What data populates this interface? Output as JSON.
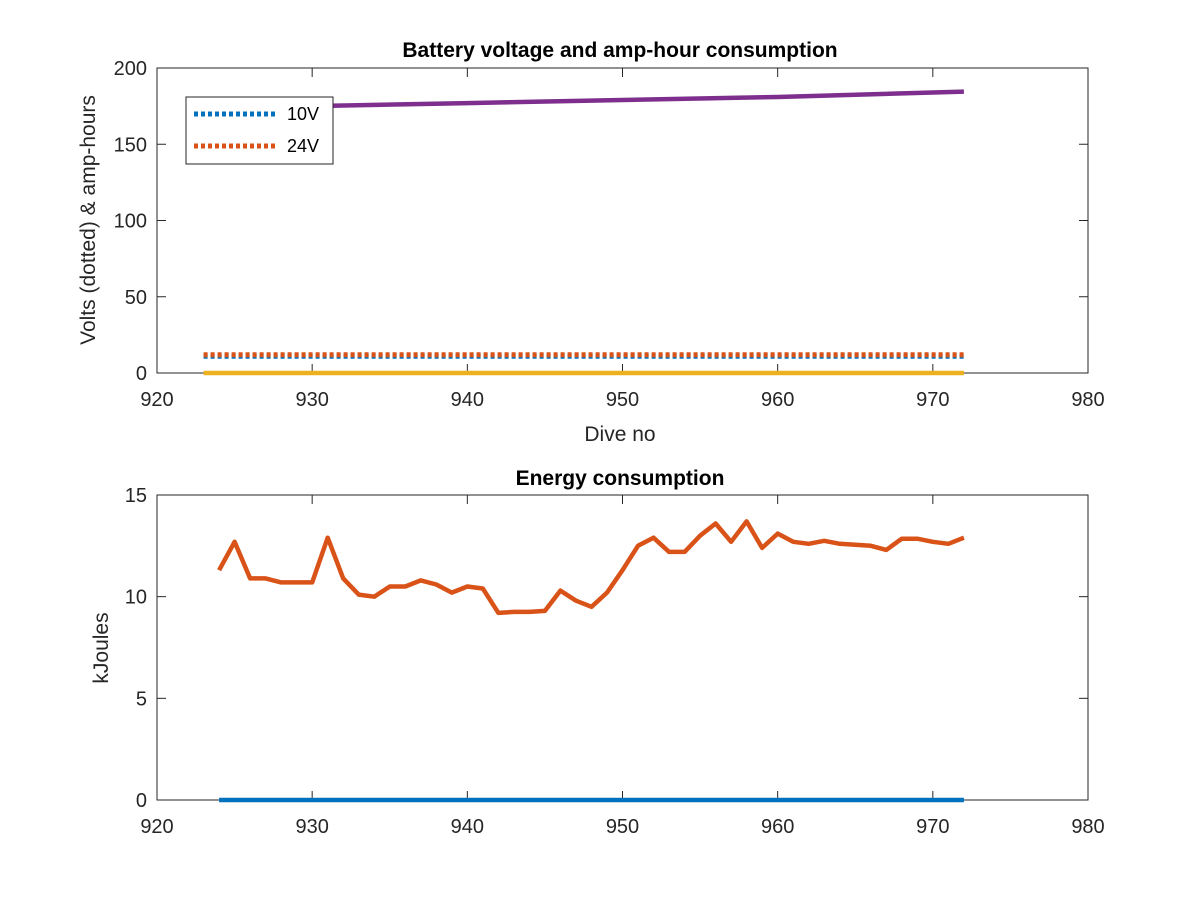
{
  "chart_data": [
    {
      "type": "line",
      "title": "Battery voltage and amp-hour consumption",
      "xlabel": "Dive no",
      "ylabel": "Volts (dotted) & amp-hours",
      "xlim": [
        920,
        980
      ],
      "ylim": [
        0,
        200
      ],
      "xticks": [
        920,
        930,
        940,
        950,
        960,
        970,
        980
      ],
      "yticks": [
        0,
        50,
        100,
        150,
        200
      ],
      "grid": false,
      "legend_position": "top-left",
      "series": [
        {
          "name": "10V",
          "style": "dotted",
          "color": "#0072BD",
          "in_legend": true,
          "x": [
            923,
            930,
            940,
            950,
            960,
            970,
            972
          ],
          "y": [
            11,
            11,
            11,
            11,
            11,
            11,
            11
          ]
        },
        {
          "name": "24V",
          "style": "dotted",
          "color": "#D95319",
          "in_legend": true,
          "x": [
            923,
            930,
            940,
            950,
            960,
            970,
            972
          ],
          "y": [
            12,
            12,
            12,
            12,
            12,
            12,
            12
          ]
        },
        {
          "style": "solid",
          "color": "#EDB120",
          "in_legend": false,
          "x": [
            923,
            972
          ],
          "y": [
            0,
            0
          ]
        },
        {
          "style": "solid",
          "color": "#7E2F8E",
          "in_legend": false,
          "x": [
            923,
            930,
            940,
            950,
            960,
            972
          ],
          "y": [
            173,
            175,
            177,
            179,
            181,
            184.5
          ]
        }
      ]
    },
    {
      "type": "line",
      "title": "Energy consumption",
      "xlabel": "",
      "ylabel": "kJoules",
      "xlim": [
        920,
        980
      ],
      "ylim": [
        0,
        15
      ],
      "xticks": [
        920,
        930,
        940,
        950,
        960,
        970,
        980
      ],
      "yticks": [
        0,
        5,
        10,
        15
      ],
      "grid": false,
      "series": [
        {
          "style": "solid",
          "color": "#0072BD",
          "x": [
            924,
            972
          ],
          "y": [
            0,
            0
          ]
        },
        {
          "style": "solid",
          "color": "#D95319",
          "x": [
            924,
            925,
            926,
            927,
            928,
            929,
            930,
            931,
            932,
            933,
            934,
            935,
            936,
            937,
            938,
            939,
            940,
            941,
            942,
            943,
            944,
            945,
            946,
            947,
            948,
            949,
            950,
            951,
            952,
            953,
            954,
            955,
            956,
            957,
            958,
            959,
            960,
            961,
            962,
            963,
            964,
            965,
            966,
            967,
            968,
            969,
            970,
            971,
            972
          ],
          "y": [
            11.3,
            12.7,
            10.9,
            10.9,
            10.7,
            10.7,
            10.7,
            12.9,
            10.9,
            10.1,
            10.0,
            10.5,
            10.5,
            10.8,
            10.6,
            10.2,
            10.5,
            10.4,
            9.2,
            9.25,
            9.25,
            9.3,
            10.3,
            9.8,
            9.5,
            10.2,
            11.3,
            12.5,
            12.9,
            12.2,
            12.2,
            13.0,
            13.6,
            12.7,
            13.7,
            12.4,
            13.1,
            12.7,
            12.6,
            12.75,
            12.6,
            12.55,
            12.5,
            12.3,
            12.85,
            12.85,
            12.7,
            12.6,
            12.9
          ]
        }
      ]
    }
  ]
}
